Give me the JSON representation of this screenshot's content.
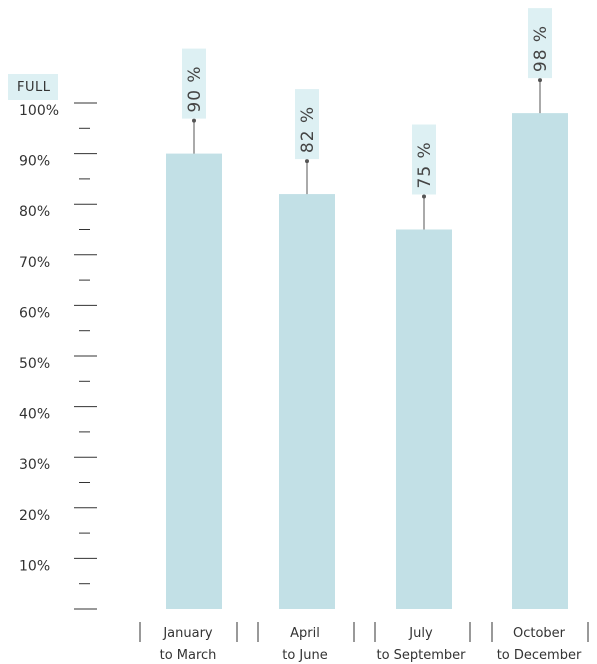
{
  "colors": {
    "bar": "#c2e0e6",
    "label_bg": "#ddf0f3",
    "axis": "#333333",
    "text": "#333333"
  },
  "chart_data": {
    "type": "bar",
    "categories": [
      "January\nto March",
      "April\nto June",
      "July\nto September",
      "October\nto December"
    ],
    "values": [
      90,
      82,
      75,
      98
    ],
    "value_labels": [
      "90 %",
      "82 %",
      "75 %",
      "98 %"
    ],
    "ylim": [
      0,
      100
    ],
    "yticks": [
      "10%",
      "20%",
      "30%",
      "40%",
      "50%",
      "60%",
      "70%",
      "80%",
      "90%",
      "100%"
    ],
    "top_label": "FULL",
    "grid": false,
    "legend": "none"
  }
}
